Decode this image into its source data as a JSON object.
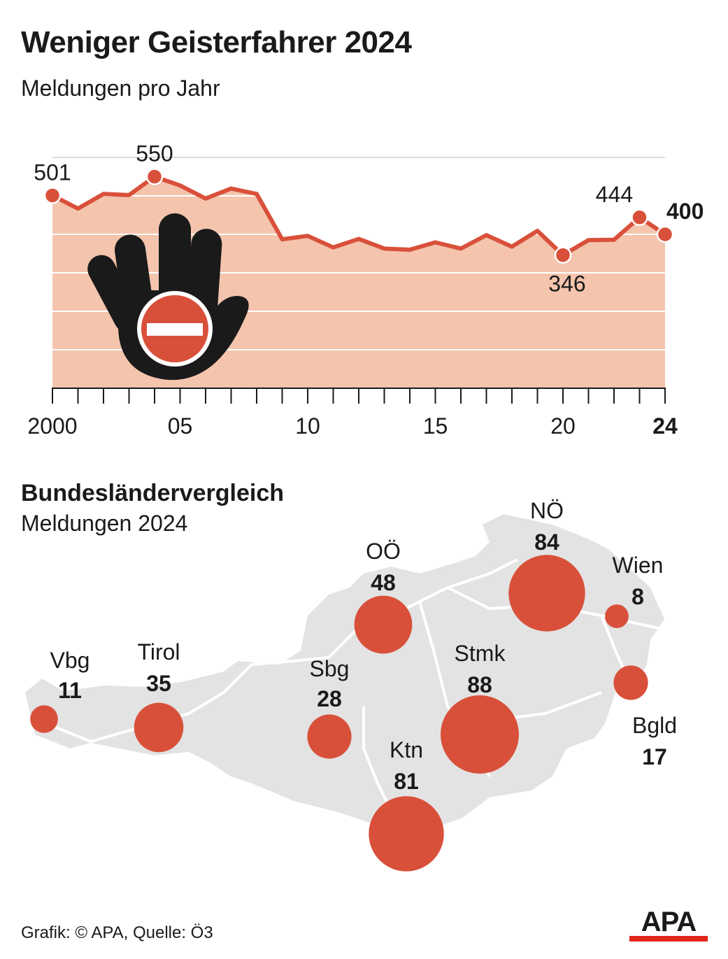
{
  "title": "Weniger Geisterfahrer 2024",
  "subtitle": "Meldungen pro Jahr",
  "colors": {
    "accent": "#d9503a",
    "area": "#f4c4ad",
    "map_fill": "#e3e3e3",
    "map_lines": "#ffffff",
    "text": "#1a1a1a"
  },
  "chart_data": [
    {
      "type": "area",
      "title": "Weniger Geisterfahrer 2024",
      "subtitle": "Meldungen pro Jahr",
      "x": [
        2000,
        2001,
        2002,
        2003,
        2004,
        2005,
        2006,
        2007,
        2008,
        2009,
        2010,
        2011,
        2012,
        2013,
        2014,
        2015,
        2016,
        2017,
        2018,
        2019,
        2020,
        2021,
        2022,
        2023,
        2024
      ],
      "values": [
        501,
        467,
        505,
        502,
        550,
        527,
        493,
        519,
        505,
        387,
        396,
        366,
        388,
        363,
        360,
        379,
        363,
        398,
        368,
        409,
        346,
        385,
        386,
        444,
        400
      ],
      "tick_labels": [
        "2000",
        "05",
        "10",
        "15",
        "20",
        "24"
      ],
      "tick_values": [
        2000,
        2005,
        2010,
        2015,
        2020,
        2024
      ],
      "point_labels": [
        {
          "x": 2000,
          "text": "501"
        },
        {
          "x": 2004,
          "text": "550"
        },
        {
          "x": 2020,
          "text": "346"
        },
        {
          "x": 2023,
          "text": "444"
        },
        {
          "x": 2024,
          "text": "400"
        }
      ],
      "ylim": [
        0,
        600
      ],
      "grid": true,
      "icon": "stop-hand-no-entry-icon"
    },
    {
      "type": "bubble-map",
      "title": "Bundesländervergleich",
      "subtitle": "Meldungen 2024",
      "series": [
        {
          "label": "Vbg",
          "value": 11
        },
        {
          "label": "Tirol",
          "value": 35
        },
        {
          "label": "Sbg",
          "value": 28
        },
        {
          "label": "OÖ",
          "value": 48
        },
        {
          "label": "NÖ",
          "value": 84
        },
        {
          "label": "Wien",
          "value": 8
        },
        {
          "label": "Stmk",
          "value": 88
        },
        {
          "label": "Bgld",
          "value": 17
        },
        {
          "label": "Ktn",
          "value": 81
        }
      ]
    }
  ],
  "section": {
    "title": "Bundesländervergleich",
    "subtitle": "Meldungen 2024"
  },
  "footer": "Grafik: © APA, Quelle: Ö3",
  "logo": "APA"
}
